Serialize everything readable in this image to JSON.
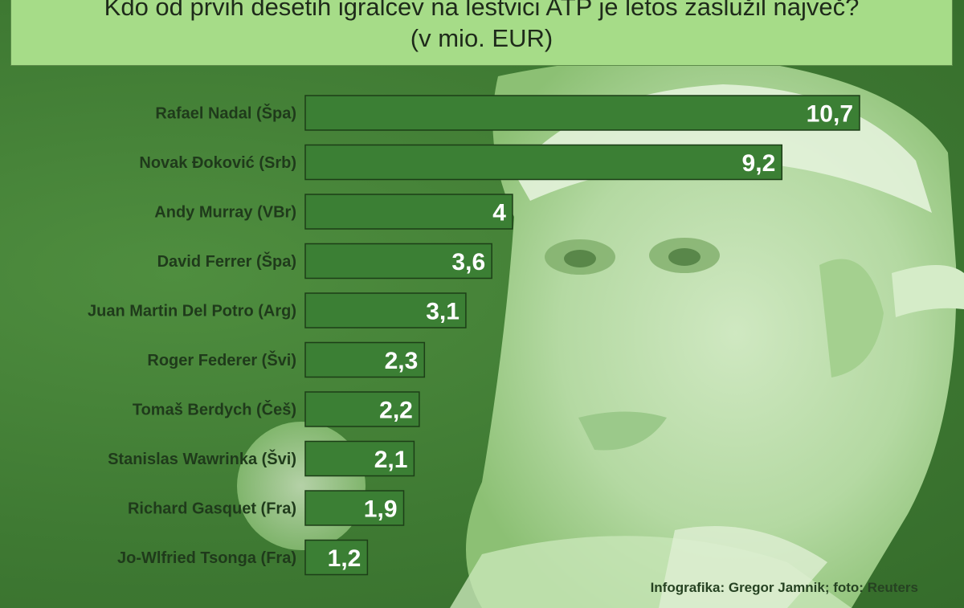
{
  "chart_data": {
    "type": "bar",
    "orientation": "horizontal",
    "title": "Kdo od prvih desetih igralcev na lestvici ATP je letos zaslužil največ?",
    "subtitle": "(v mio. EUR)",
    "categories": [
      "Rafael Nadal (Špa)",
      "Novak Đoković (Srb)",
      "Andy Murray (VBr)",
      "David Ferrer (Špa)",
      "Juan Martin Del Potro (Arg)",
      "Roger Federer (Švi)",
      "Tomaš Berdych (Češ)",
      "Stanislas Wawrinka (Švi)",
      "Richard Gasquet (Fra)",
      "Jo-Wlfried Tsonga (Fra)"
    ],
    "values": [
      10.7,
      9.2,
      4,
      3.6,
      3.1,
      2.3,
      2.2,
      2.1,
      1.9,
      1.2
    ],
    "value_labels": [
      "10,7",
      "9,2",
      "4",
      "3,6",
      "3,1",
      "2,3",
      "2,2",
      "2,1",
      "1,9",
      "1,2"
    ],
    "xlim": [
      0,
      10.7
    ],
    "grid": false,
    "legend": "none",
    "colors": {
      "bar": "#3b7f34",
      "bar_border": "#1c3e17",
      "label": "#1f3a1b",
      "value": "#ffffff"
    }
  },
  "credit": "Infografika: Gregor Jamnik; foto: Reuters"
}
